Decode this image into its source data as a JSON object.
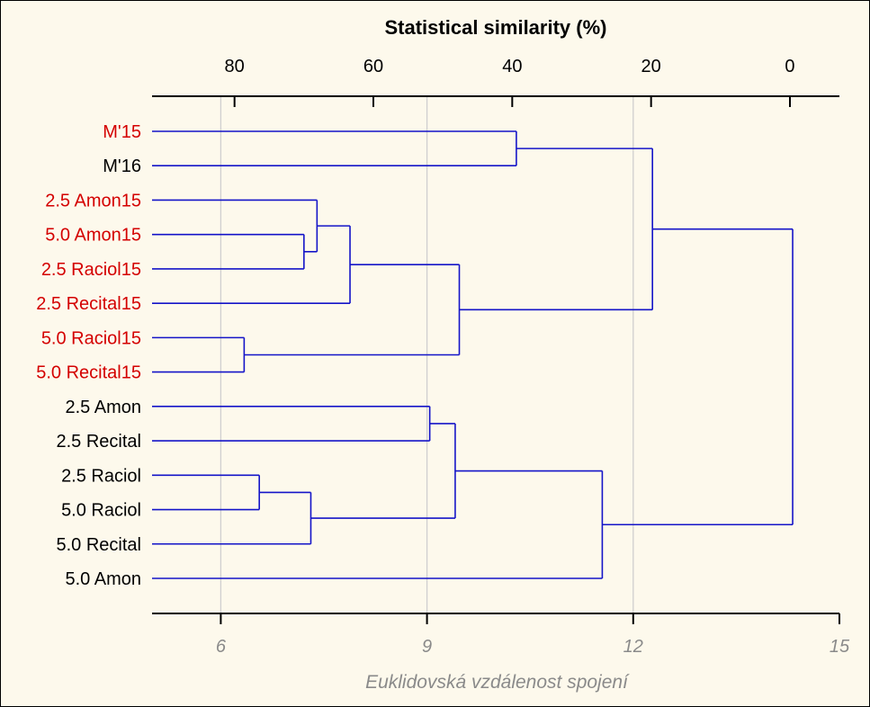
{
  "chart_data": {
    "type": "dendrogram",
    "title": "Statistical similarity (%)",
    "xlabel": "Euklidovská vzdálenost spojení",
    "bottom_axis": {
      "min": 5,
      "max": 15,
      "ticks": [
        6,
        9,
        12,
        15
      ]
    },
    "top_axis": {
      "ticks": [
        80,
        60,
        40,
        20,
        0
      ],
      "tick_at_bottom_value": [
        6.2,
        8.22,
        10.24,
        12.26,
        14.28
      ]
    },
    "leaves": [
      {
        "label": "M'15",
        "color": "#d40000"
      },
      {
        "label": "M'16",
        "color": "#000000"
      },
      {
        "label": "2.5 Amon15",
        "color": "#d40000"
      },
      {
        "label": "5.0 Amon15",
        "color": "#d40000"
      },
      {
        "label": "2.5 Raciol15",
        "color": "#d40000"
      },
      {
        "label": "2.5 Recital15",
        "color": "#d40000"
      },
      {
        "label": "5.0 Raciol15",
        "color": "#d40000"
      },
      {
        "label": "5.0 Recital15",
        "color": "#d40000"
      },
      {
        "label": "2.5 Amon",
        "color": "#000000"
      },
      {
        "label": "2.5 Recital",
        "color": "#000000"
      },
      {
        "label": "2.5 Raciol",
        "color": "#000000"
      },
      {
        "label": "5.0 Raciol",
        "color": "#000000"
      },
      {
        "label": "5.0 Recital",
        "color": "#000000"
      },
      {
        "label": "5.0 Amon",
        "color": "#000000"
      }
    ],
    "merges": [
      {
        "id": "n1",
        "left": "5.0 Raciol15",
        "right": "5.0 Recital15",
        "height": 6.34
      },
      {
        "id": "n2",
        "left": "2.5 Raciol",
        "right": "5.0 Raciol",
        "height": 6.56
      },
      {
        "id": "n3",
        "left": "5.0 Amon15",
        "right": "2.5 Raciol15",
        "height": 7.21
      },
      {
        "id": "n4",
        "left": "n2",
        "right": "5.0 Recital",
        "height": 7.31
      },
      {
        "id": "n5",
        "left": "2.5 Amon15",
        "right": "n3",
        "height": 7.4
      },
      {
        "id": "n6",
        "left": "n5",
        "right": "2.5 Recital15",
        "height": 7.88
      },
      {
        "id": "n7",
        "left": "2.5 Amon",
        "right": "2.5 Recital",
        "height": 9.04
      },
      {
        "id": "n8",
        "left": "n7",
        "right": "n4",
        "height": 9.41
      },
      {
        "id": "n9",
        "left": "n6",
        "right": "n1",
        "height": 9.47
      },
      {
        "id": "n10",
        "left": "M'15",
        "right": "M'16",
        "height": 10.3
      },
      {
        "id": "n11",
        "left": "n8",
        "right": "5.0 Amon",
        "height": 11.55
      },
      {
        "id": "n12",
        "left": "n10",
        "right": "n9",
        "height": 12.28
      },
      {
        "id": "n13",
        "left": "n12",
        "right": "n11",
        "height": 14.32
      }
    ],
    "colors": {
      "tree": "#1414c8",
      "grid": "#cfcfcf",
      "axis": "#000000",
      "bottom_ticks": "#8a8a8a"
    }
  }
}
